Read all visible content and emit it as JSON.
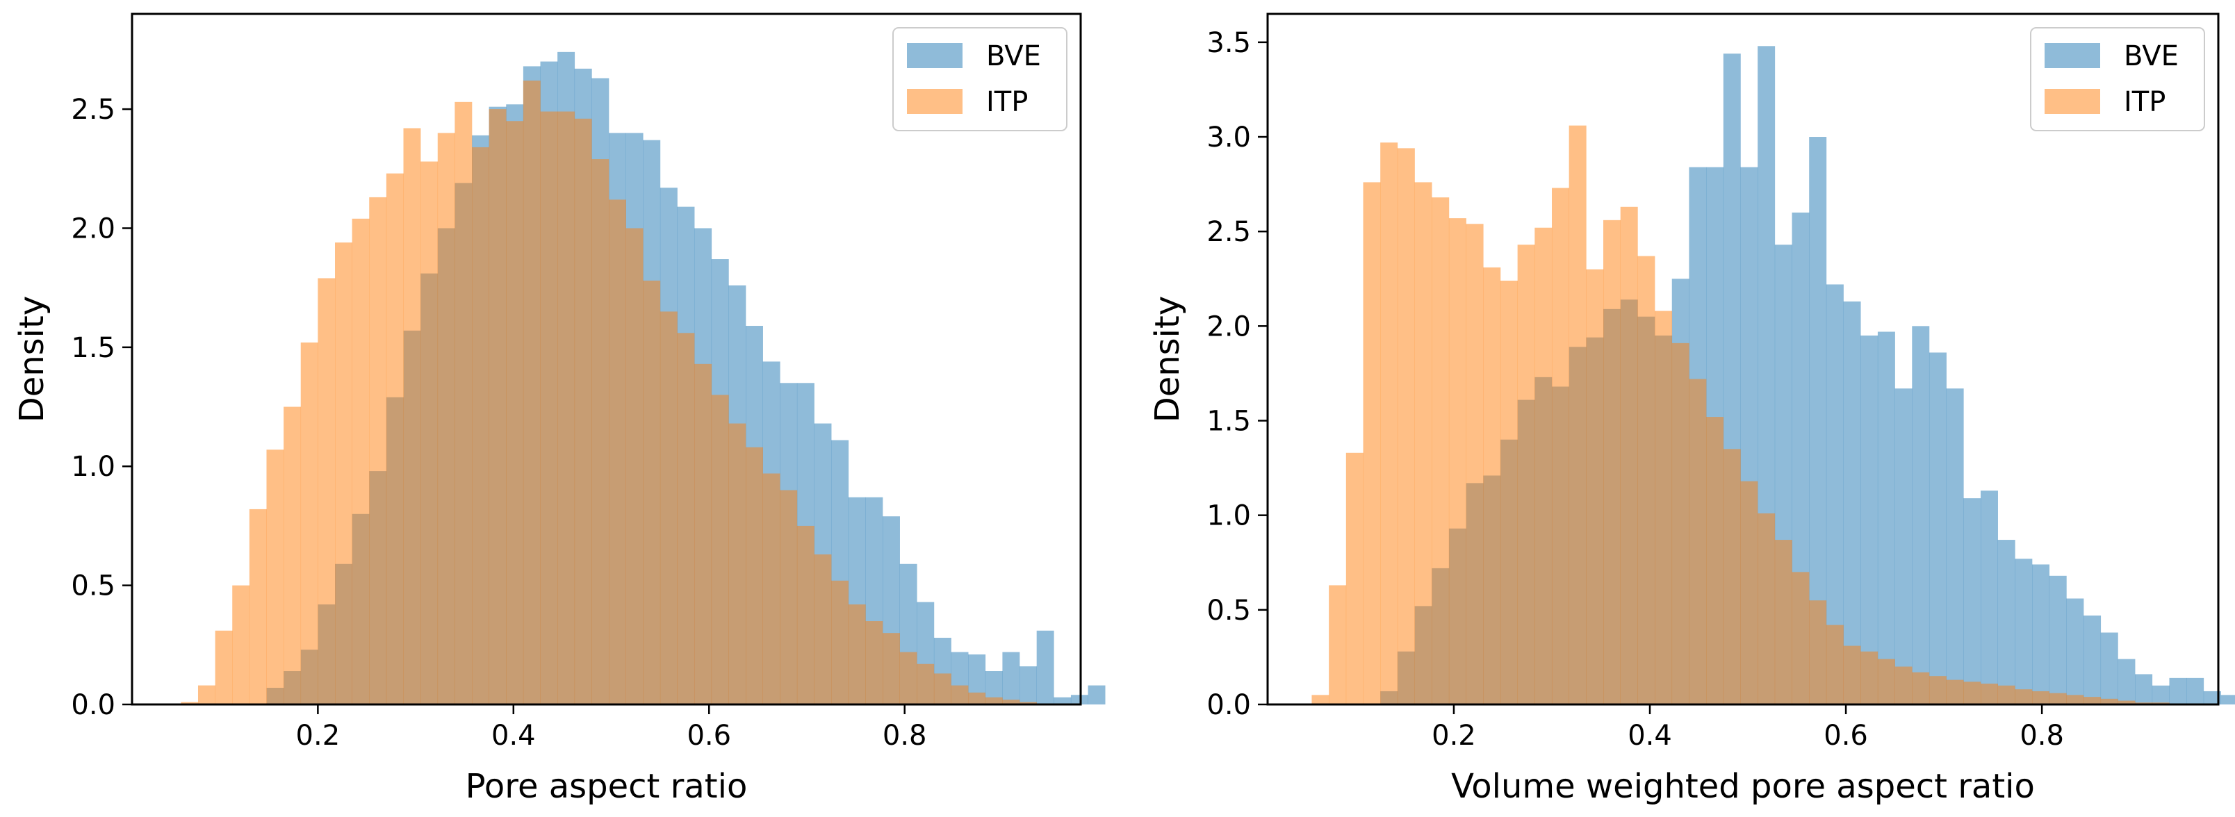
{
  "chart_data": [
    {
      "type": "bar",
      "subtype": "overlaid-histogram",
      "title": "",
      "xlabel": "Pore aspect ratio",
      "ylabel": "Density",
      "xlim": [
        0.01,
        0.98
      ],
      "ylim": [
        0.0,
        2.9
      ],
      "xticks": [
        0.2,
        0.4,
        0.6,
        0.8
      ],
      "yticks": [
        0.0,
        0.5,
        1.0,
        1.5,
        2.0,
        2.5
      ],
      "xtick_labels": [
        "0.2",
        "0.4",
        "0.6",
        "0.8"
      ],
      "ytick_labels": [
        "0.0",
        "0.5",
        "1.0",
        "1.5",
        "2.0",
        "2.5"
      ],
      "legend": {
        "position": "top-right",
        "entries": [
          "BVE",
          "ITP"
        ]
      },
      "series": [
        {
          "name": "BVE",
          "color": "#1f77b4",
          "alpha": 0.5,
          "bin_start": 0.0775,
          "bin_width": 0.0175,
          "values": [
            0.0,
            0.0,
            0.0,
            0.0,
            0.07,
            0.14,
            0.23,
            0.42,
            0.59,
            0.8,
            0.98,
            1.29,
            1.57,
            1.81,
            2.0,
            2.19,
            2.39,
            2.51,
            2.52,
            2.68,
            2.7,
            2.74,
            2.67,
            2.63,
            2.4,
            2.4,
            2.37,
            2.17,
            2.09,
            2.0,
            1.87,
            1.76,
            1.59,
            1.44,
            1.35,
            1.35,
            1.18,
            1.11,
            0.87,
            0.87,
            0.79,
            0.59,
            0.43,
            0.28,
            0.22,
            0.21,
            0.14,
            0.22,
            0.16,
            0.31,
            0.03,
            0.04,
            0.08
          ]
        },
        {
          "name": "ITP",
          "color": "#ff7f0e",
          "alpha": 0.5,
          "bin_start": 0.06,
          "bin_width": 0.0175,
          "values": [
            0.01,
            0.08,
            0.31,
            0.5,
            0.82,
            1.07,
            1.25,
            1.52,
            1.79,
            1.94,
            2.04,
            2.13,
            2.23,
            2.42,
            2.28,
            2.4,
            2.53,
            2.34,
            2.5,
            2.45,
            2.62,
            2.49,
            2.49,
            2.46,
            2.29,
            2.12,
            2.0,
            1.78,
            1.65,
            1.56,
            1.43,
            1.3,
            1.18,
            1.08,
            0.97,
            0.9,
            0.75,
            0.63,
            0.52,
            0.42,
            0.35,
            0.3,
            0.22,
            0.17,
            0.13,
            0.08,
            0.05,
            0.03,
            0.02,
            0.01,
            0.0
          ]
        }
      ]
    },
    {
      "type": "bar",
      "subtype": "overlaid-histogram",
      "title": "",
      "xlabel": "Volume weighted pore aspect ratio",
      "ylabel": "Density",
      "xlim": [
        0.01,
        0.98
      ],
      "ylim": [
        0.0,
        3.65
      ],
      "xticks": [
        0.2,
        0.4,
        0.6,
        0.8
      ],
      "yticks": [
        0.0,
        0.5,
        1.0,
        1.5,
        2.0,
        2.5,
        3.0,
        3.5
      ],
      "xtick_labels": [
        "0.2",
        "0.4",
        "0.6",
        "0.8"
      ],
      "ytick_labels": [
        "0.0",
        "0.5",
        "1.0",
        "1.5",
        "2.0",
        "2.5",
        "3.0",
        "3.5"
      ],
      "legend": {
        "position": "top-right",
        "entries": [
          "BVE",
          "ITP"
        ]
      },
      "series": [
        {
          "name": "BVE",
          "color": "#1f77b4",
          "alpha": 0.5,
          "bin_start": 0.055,
          "bin_width": 0.0175,
          "values": [
            0.0,
            0.0,
            0.0,
            0.0,
            0.07,
            0.28,
            0.52,
            0.72,
            0.93,
            1.17,
            1.21,
            1.4,
            1.61,
            1.73,
            1.68,
            1.89,
            1.94,
            2.09,
            2.14,
            2.05,
            1.95,
            2.25,
            2.84,
            2.84,
            3.44,
            2.84,
            3.48,
            2.43,
            2.6,
            3.0,
            2.22,
            2.13,
            1.95,
            1.97,
            1.67,
            2.0,
            1.86,
            1.67,
            1.09,
            1.13,
            0.87,
            0.77,
            0.74,
            0.68,
            0.56,
            0.47,
            0.38,
            0.24,
            0.16,
            0.1,
            0.14,
            0.14,
            0.07,
            0.05,
            0.0,
            0.0,
            0.0
          ]
        },
        {
          "name": "ITP",
          "color": "#ff7f0e",
          "alpha": 0.5,
          "bin_start": 0.055,
          "bin_width": 0.0175,
          "values": [
            0.05,
            0.63,
            1.33,
            2.76,
            2.97,
            2.94,
            2.76,
            2.68,
            2.57,
            2.54,
            2.31,
            2.24,
            2.43,
            2.52,
            2.73,
            3.06,
            2.3,
            2.56,
            2.63,
            2.37,
            2.08,
            1.91,
            1.72,
            1.52,
            1.35,
            1.18,
            1.01,
            0.87,
            0.7,
            0.55,
            0.42,
            0.31,
            0.28,
            0.24,
            0.2,
            0.17,
            0.15,
            0.13,
            0.12,
            0.11,
            0.1,
            0.08,
            0.07,
            0.06,
            0.05,
            0.04,
            0.03,
            0.02,
            0.01,
            0.01,
            0.0
          ]
        }
      ]
    }
  ]
}
